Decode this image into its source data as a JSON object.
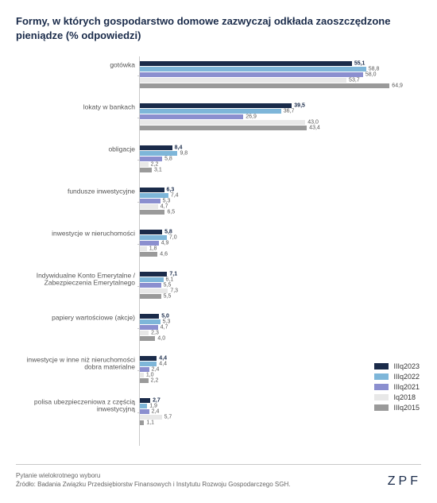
{
  "title": "Formy, w których gospodarstwo domowe zazwyczaj odkłada zaoszczędzone pieniądze (% odpowiedzi)",
  "chart": {
    "type": "bar",
    "orientation": "horizontal",
    "xmax": 70,
    "series": [
      {
        "key": "IIIq2023",
        "color": "#1a2b4a",
        "bold": true
      },
      {
        "key": "IIIq2022",
        "color": "#7eb6d9",
        "bold": false
      },
      {
        "key": "IIIq2021",
        "color": "#8b8fcf",
        "bold": false
      },
      {
        "key": "Iq2018",
        "color": "#e8e8e8",
        "bold": false
      },
      {
        "key": "IIIq2015",
        "color": "#9a9a9a",
        "bold": false
      }
    ],
    "categories": [
      {
        "label": "gotówka",
        "values": [
          "55,1",
          "58,8",
          "58,0",
          "53,7",
          "64,9"
        ],
        "nums": [
          55.1,
          58.8,
          58.0,
          53.7,
          64.9
        ]
      },
      {
        "label": "lokaty w bankach",
        "values": [
          "39,5",
          "36,7",
          "26,9",
          "43,0",
          "43,4"
        ],
        "nums": [
          39.5,
          36.7,
          26.9,
          43.0,
          43.4
        ]
      },
      {
        "label": "obligacje",
        "values": [
          "8,4",
          "9,8",
          "5,8",
          "2,2",
          "3,1"
        ],
        "nums": [
          8.4,
          9.8,
          5.8,
          2.2,
          3.1
        ]
      },
      {
        "label": "fundusze inwestycyjne",
        "values": [
          "6,3",
          "7,4",
          "5,3",
          "4,7",
          "6,5"
        ],
        "nums": [
          6.3,
          7.4,
          5.3,
          4.7,
          6.5
        ]
      },
      {
        "label": "inwestycje w nieruchomości",
        "values": [
          "5,8",
          "7,0",
          "4,9",
          "1,8",
          "4,6"
        ],
        "nums": [
          5.8,
          7.0,
          4.9,
          1.8,
          4.6
        ]
      },
      {
        "label": "Indywidualne Konto Emerytalne / Zabezpieczenia Emerytalnego",
        "values": [
          "7,1",
          "6,1",
          "5,5",
          "7,3",
          "5,5"
        ],
        "nums": [
          7.1,
          6.1,
          5.5,
          7.3,
          5.5
        ]
      },
      {
        "label": "papiery wartościowe (akcje)",
        "values": [
          "5,0",
          "5,3",
          "4,7",
          "2,3",
          "4,0"
        ],
        "nums": [
          5.0,
          5.3,
          4.7,
          2.3,
          4.0
        ]
      },
      {
        "label": "inwestycje w inne niż nieruchomości dobra materialne",
        "values": [
          "4,4",
          "4,4",
          "2,4",
          "1,0",
          "2,2"
        ],
        "nums": [
          4.4,
          4.4,
          2.4,
          1.0,
          2.2
        ]
      },
      {
        "label": "polisa ubezpieczeniowa z częścią inwestycyjną",
        "values": [
          "2,7",
          "1,9",
          "2,4",
          "5,7",
          "1,1"
        ],
        "nums": [
          2.7,
          1.9,
          2.4,
          5.7,
          1.1
        ]
      }
    ]
  },
  "legend_title": "",
  "footer": {
    "note": "Pytanie wielokrotnego wyboru",
    "source": "Źródło: Badania Związku Przedsiębiorstw Finansowych i Instytutu Rozwoju Gospodarczego SGH.",
    "brand": "ZPF"
  }
}
